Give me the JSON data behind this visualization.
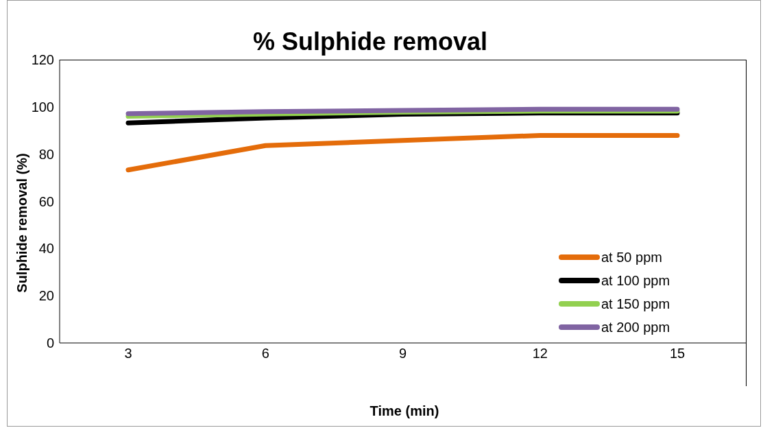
{
  "chart_data": {
    "type": "line",
    "title": "% Sulphide removal",
    "xlabel": "Time (min)",
    "ylabel": "Sulphide removal (%)",
    "categories": [
      "3",
      "6",
      "9",
      "12",
      "15"
    ],
    "ylim": [
      0,
      120
    ],
    "yticks": [
      0,
      20,
      40,
      60,
      80,
      100,
      120
    ],
    "grid": false,
    "legend": "right",
    "marker": "none",
    "series": [
      {
        "name": "at 50 ppm",
        "color": "#e46c0a",
        "values": [
          73.3,
          83.6,
          85.8,
          87.9,
          87.9
        ]
      },
      {
        "name": "at 100 ppm",
        "color": "#000000",
        "values": [
          93.2,
          95.3,
          96.9,
          97.4,
          97.4
        ]
      },
      {
        "name": "at 150 ppm",
        "color": "#92d050",
        "values": [
          96.0,
          97.0,
          97.8,
          98.2,
          98.2
        ]
      },
      {
        "name": "at 200 ppm",
        "color": "#8064a2",
        "values": [
          97.1,
          98.0,
          98.5,
          99.0,
          99.0
        ]
      }
    ]
  }
}
